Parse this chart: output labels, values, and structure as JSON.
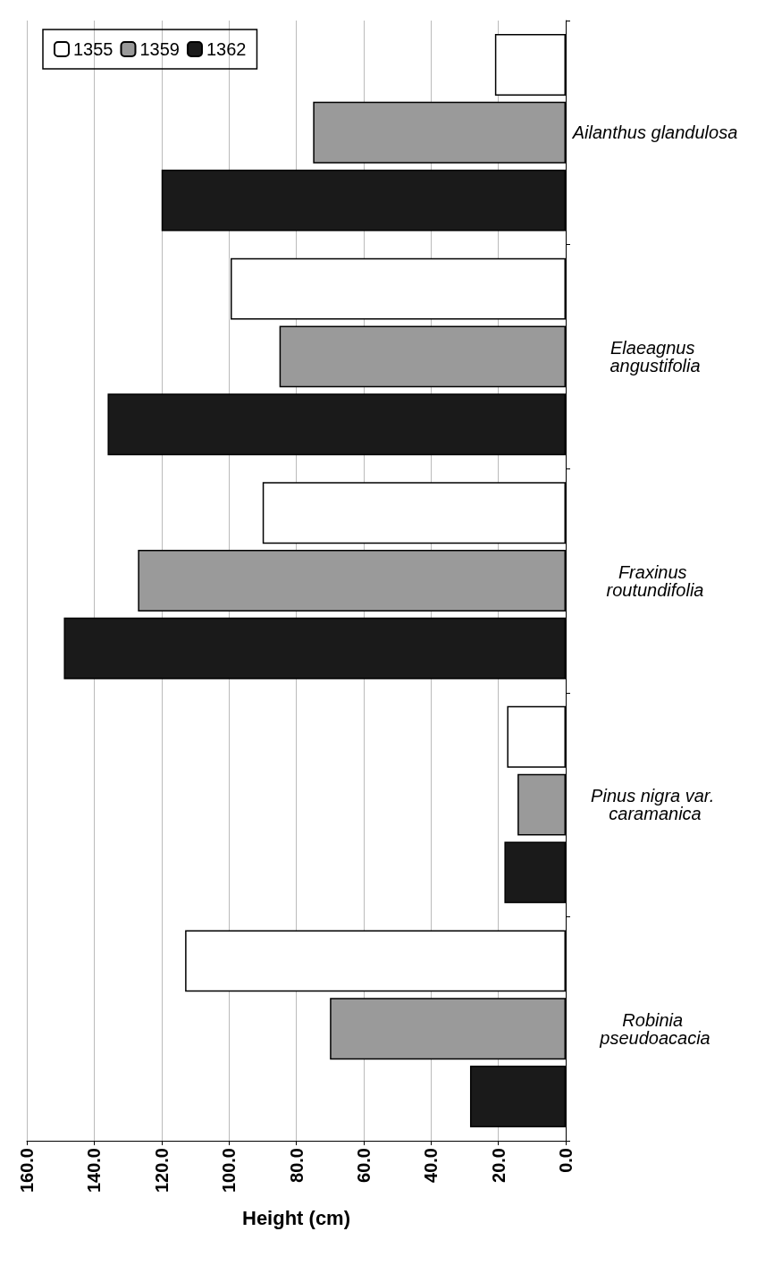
{
  "chart_data": {
    "type": "bar",
    "orientation": "horizontal",
    "xlabel": "Height (cm)",
    "categories": [
      "Ailanthus glandulosa",
      "Elaeagnus angustifolia",
      "Fraxinus routundifolia",
      "Pinus nigra var. caramanica",
      "Robinia pseudoacacia"
    ],
    "series": [
      {
        "name": "1355",
        "color": "#ffffff",
        "values": [
          21,
          99.5,
          90,
          17.4,
          113
        ]
      },
      {
        "name": "1359",
        "color": "#9a9a9a",
        "values": [
          75,
          85,
          127,
          14.3,
          70
        ]
      },
      {
        "name": "1362",
        "color": "#1a1a1a",
        "values": [
          120,
          136,
          149,
          18.2,
          28.4
        ]
      }
    ],
    "xlim": [
      160,
      0
    ],
    "xticks": [
      {
        "value": 0,
        "label": "0.0"
      },
      {
        "value": 20,
        "label": "20.0"
      },
      {
        "value": 40,
        "label": "40.0"
      },
      {
        "value": 60,
        "label": "60.0"
      },
      {
        "value": 80,
        "label": "80.0"
      },
      {
        "value": 100,
        "label": "100.0"
      },
      {
        "value": 120,
        "label": "120.0"
      },
      {
        "value": 140,
        "label": "140.0"
      },
      {
        "value": 160,
        "label": "160.0"
      }
    ],
    "grid": "x",
    "legend": "top left"
  }
}
